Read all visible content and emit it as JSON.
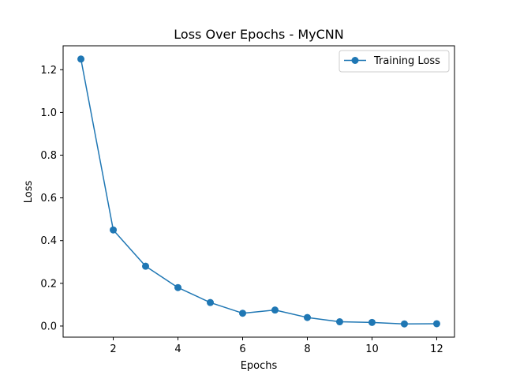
{
  "chart_data": {
    "type": "line",
    "title": "Loss Over Epochs - MyCNN",
    "xlabel": "Epochs",
    "ylabel": "Loss",
    "x": [
      1,
      2,
      3,
      4,
      5,
      6,
      7,
      8,
      9,
      10,
      11,
      12
    ],
    "series": [
      {
        "name": "Training Loss",
        "values": [
          1.25,
          0.45,
          0.28,
          0.18,
          0.11,
          0.06,
          0.075,
          0.04,
          0.02,
          0.017,
          0.01,
          0.011
        ],
        "color": "#1f77b4",
        "marker": "circle"
      }
    ],
    "xlim": [
      0.45,
      12.55
    ],
    "ylim": [
      -0.052,
      1.312
    ],
    "xticks": [
      2,
      4,
      6,
      8,
      10,
      12
    ],
    "yticks": [
      0.0,
      0.2,
      0.4,
      0.6,
      0.8,
      1.0,
      1.2
    ],
    "xtick_labels": [
      "2",
      "4",
      "6",
      "8",
      "10",
      "12"
    ],
    "ytick_labels": [
      "0.0",
      "0.2",
      "0.4",
      "0.6",
      "0.8",
      "1.0",
      "1.2"
    ],
    "grid": false,
    "legend_position": "top-right"
  }
}
